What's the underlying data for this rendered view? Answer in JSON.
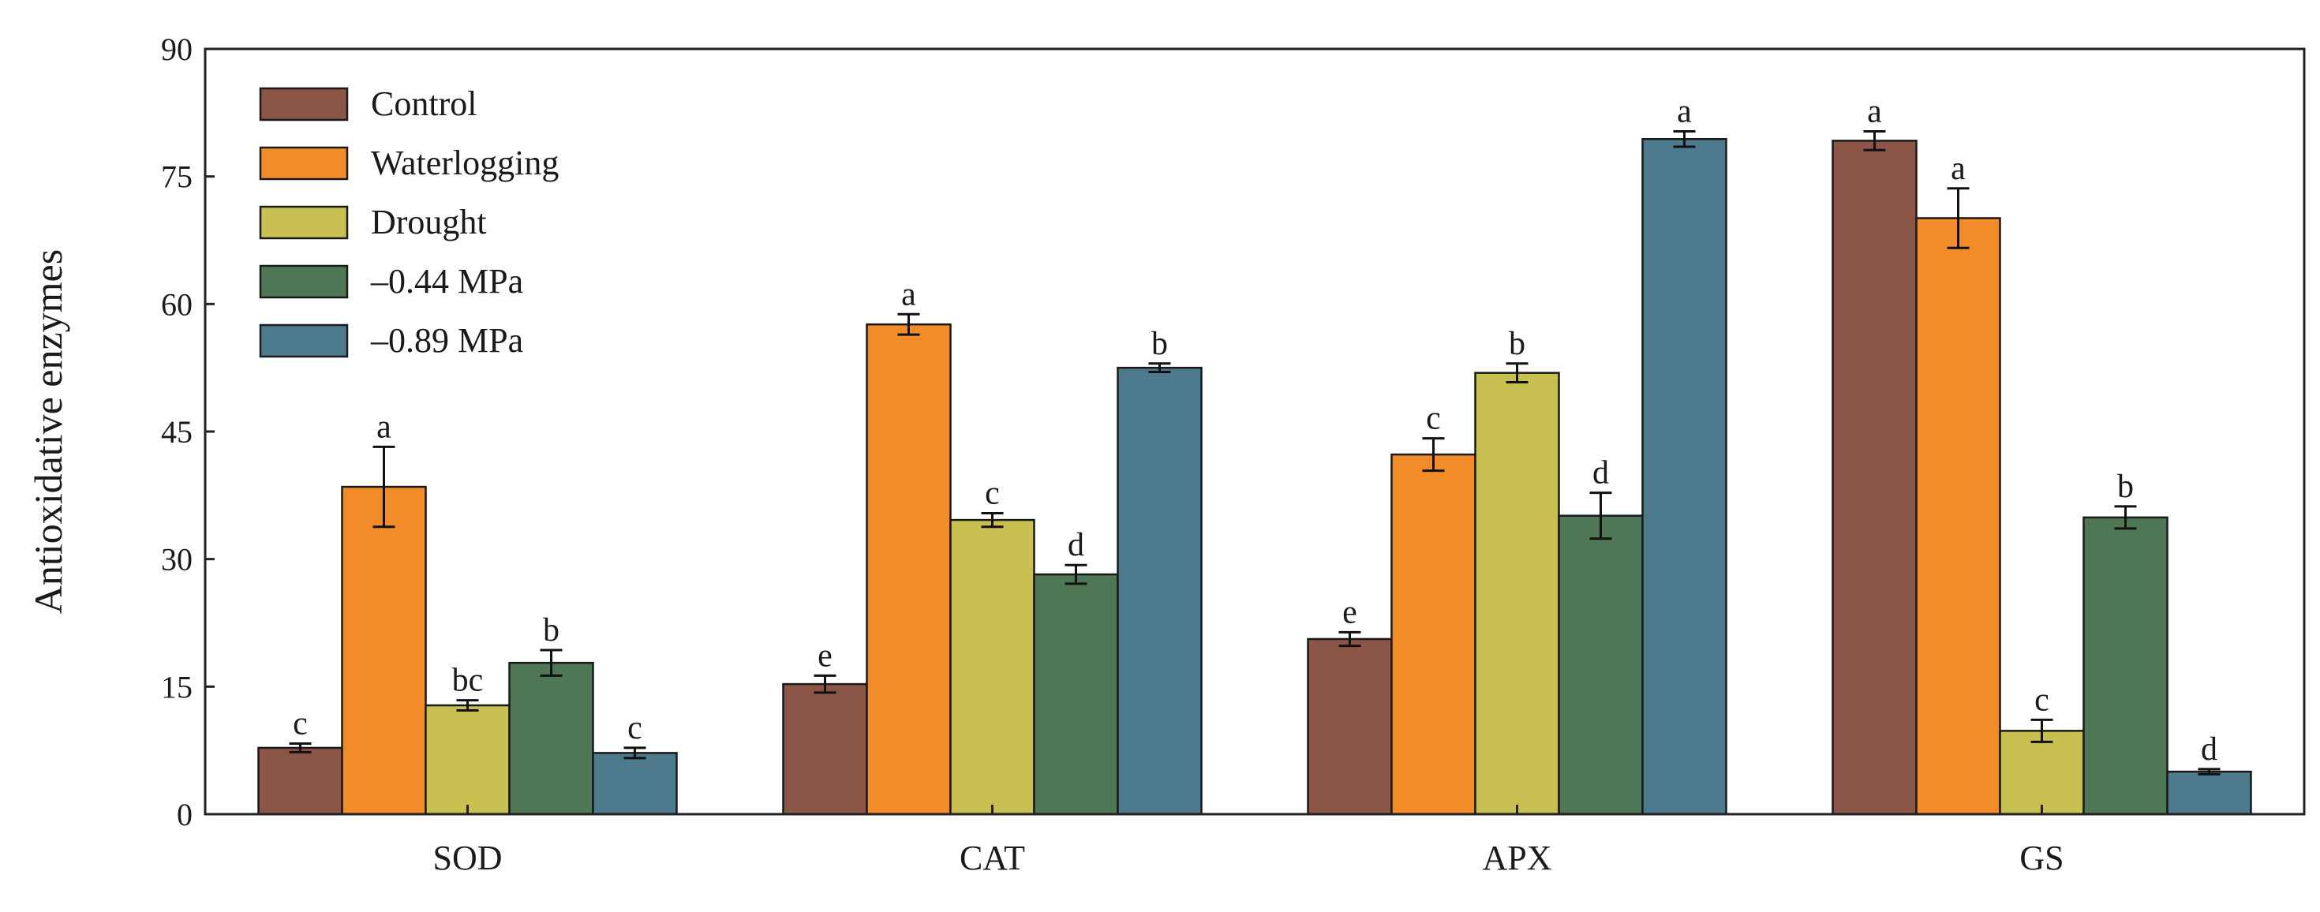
{
  "chart_data": {
    "type": "bar",
    "title": "",
    "xlabel": "",
    "ylabel": "Antioxidative enzymes",
    "ylim": [
      0,
      90
    ],
    "yticks": [
      0,
      15,
      30,
      45,
      60,
      75,
      90
    ],
    "categories": [
      "SOD",
      "CAT",
      "APX",
      "GS"
    ],
    "legend_position": "top-left",
    "series": [
      {
        "name": "Control",
        "color": "#8B5548",
        "values": [
          7.8,
          15.3,
          20.6,
          79.2
        ],
        "errors": [
          0.5,
          1.0,
          0.8,
          1.1
        ],
        "letters": [
          "c",
          "e",
          "e",
          "a"
        ]
      },
      {
        "name": "Waterlogging",
        "color": "#F28C28",
        "values": [
          38.5,
          57.6,
          42.3,
          70.1
        ],
        "errors": [
          4.7,
          1.2,
          1.9,
          3.5
        ],
        "letters": [
          "a",
          "a",
          "c",
          "a"
        ]
      },
      {
        "name": "Drought",
        "color": "#C8C050",
        "values": [
          12.8,
          34.6,
          51.9,
          9.8
        ],
        "errors": [
          0.6,
          0.8,
          1.1,
          1.3
        ],
        "letters": [
          "bc",
          "c",
          "b",
          "c"
        ]
      },
      {
        "name": "–0.44 MPa",
        "color": "#4F7756",
        "values": [
          17.8,
          28.2,
          35.1,
          34.9
        ],
        "errors": [
          1.5,
          1.1,
          2.7,
          1.3
        ],
        "letters": [
          "b",
          "d",
          "d",
          "b"
        ]
      },
      {
        "name": "–0.89 MPa",
        "color": "#4E7A8E",
        "values": [
          7.2,
          52.5,
          79.4,
          5.0
        ],
        "errors": [
          0.6,
          0.5,
          0.9,
          0.3
        ],
        "letters": [
          "c",
          "b",
          "a",
          "d"
        ]
      }
    ]
  }
}
